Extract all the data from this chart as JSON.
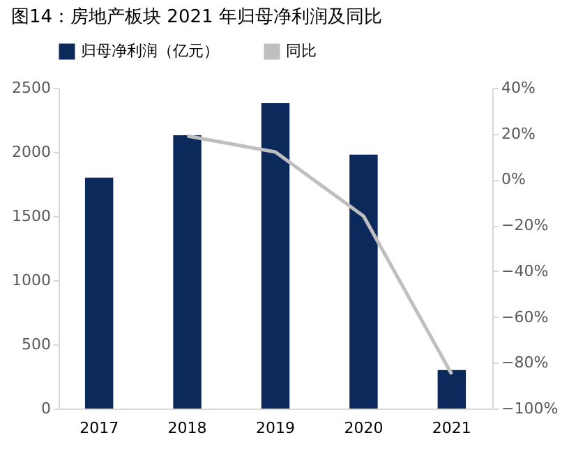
{
  "chart_data": {
    "type": "bar",
    "title": "图14：房地产板块 2021 年归母净利润及同比",
    "categories": [
      "2017",
      "2018",
      "2019",
      "2020",
      "2021"
    ],
    "series": [
      {
        "name": "归母净利润（亿元）",
        "color": "#0b2a5b",
        "values": [
          1800,
          2130,
          2380,
          1980,
          300
        ]
      },
      {
        "name": "同比",
        "type": "line",
        "axis": "y2",
        "color": "#bfbfbf",
        "values": [
          null,
          19,
          12,
          -16,
          -85
        ]
      }
    ],
    "ylim": [
      0,
      2500
    ],
    "yticks": [
      0,
      500,
      1000,
      1500,
      2000,
      2500
    ],
    "y2lim": [
      -100,
      40
    ],
    "y2ticks": [
      {
        "value": -100,
        "label": "−100%"
      },
      {
        "value": -80,
        "label": "−80%"
      },
      {
        "value": -60,
        "label": "−60%"
      },
      {
        "value": -40,
        "label": "−40%"
      },
      {
        "value": -20,
        "label": "−20%"
      },
      {
        "value": 0,
        "label": "0%"
      },
      {
        "value": 20,
        "label": "20%"
      },
      {
        "value": 40,
        "label": "40%"
      }
    ],
    "grid": false,
    "legend": "top",
    "marker": "none",
    "line_style": "solid"
  }
}
